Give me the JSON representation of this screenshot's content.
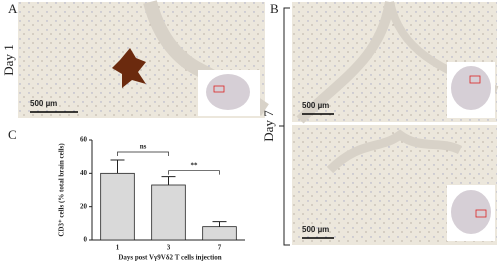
{
  "panels": {
    "a": "A",
    "b": "B",
    "c": "C"
  },
  "day_labels": {
    "day1": "Day 1",
    "day7": "Day 7"
  },
  "scale_bars": [
    "500 µm",
    "500 µm",
    "500 µm"
  ],
  "chart_data": {
    "type": "bar",
    "y_label": "CD3⁺ cells (% total brain cells)",
    "x_label": "Days post Vγ9Vδ2 T cells injection",
    "categories": [
      "1",
      "3",
      "7"
    ],
    "values": [
      40,
      33,
      8
    ],
    "errors": [
      8,
      5,
      3
    ],
    "color": "#d9d9d9",
    "ylim": [
      0,
      60
    ],
    "yticks": [
      0,
      20,
      40,
      60
    ],
    "annotations": [
      "ns",
      "**"
    ]
  }
}
